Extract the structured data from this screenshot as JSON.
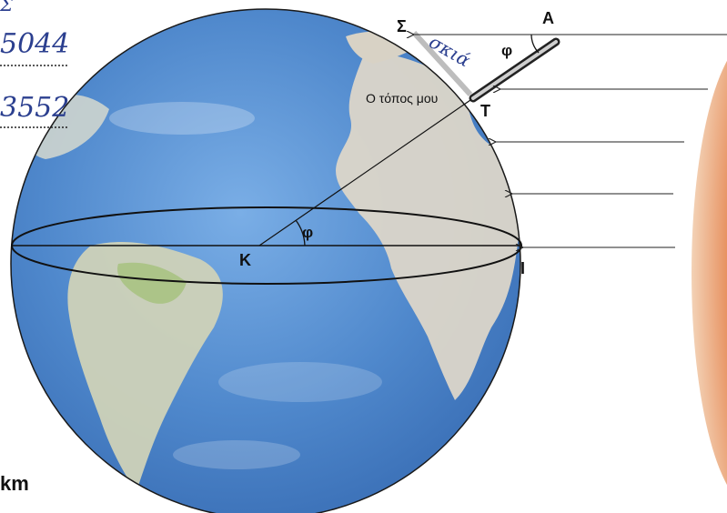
{
  "handwritten": {
    "top_fragment": "Σ",
    "value_1": "5044",
    "value_2": "3552"
  },
  "shadow_label": "σκιά",
  "place_label": "Ο τόπος μου",
  "points": {
    "sigma": "Σ",
    "a": "A",
    "t": "T",
    "k": "K",
    "i": "I"
  },
  "angles": {
    "phi_top": "φ",
    "phi_center": "φ"
  },
  "unit_label": "km",
  "colors": {
    "ocean": "#5b8fd0",
    "land": "#d9d4c8",
    "sun": "#d8542a",
    "handwriting": "#2b3f8f"
  }
}
